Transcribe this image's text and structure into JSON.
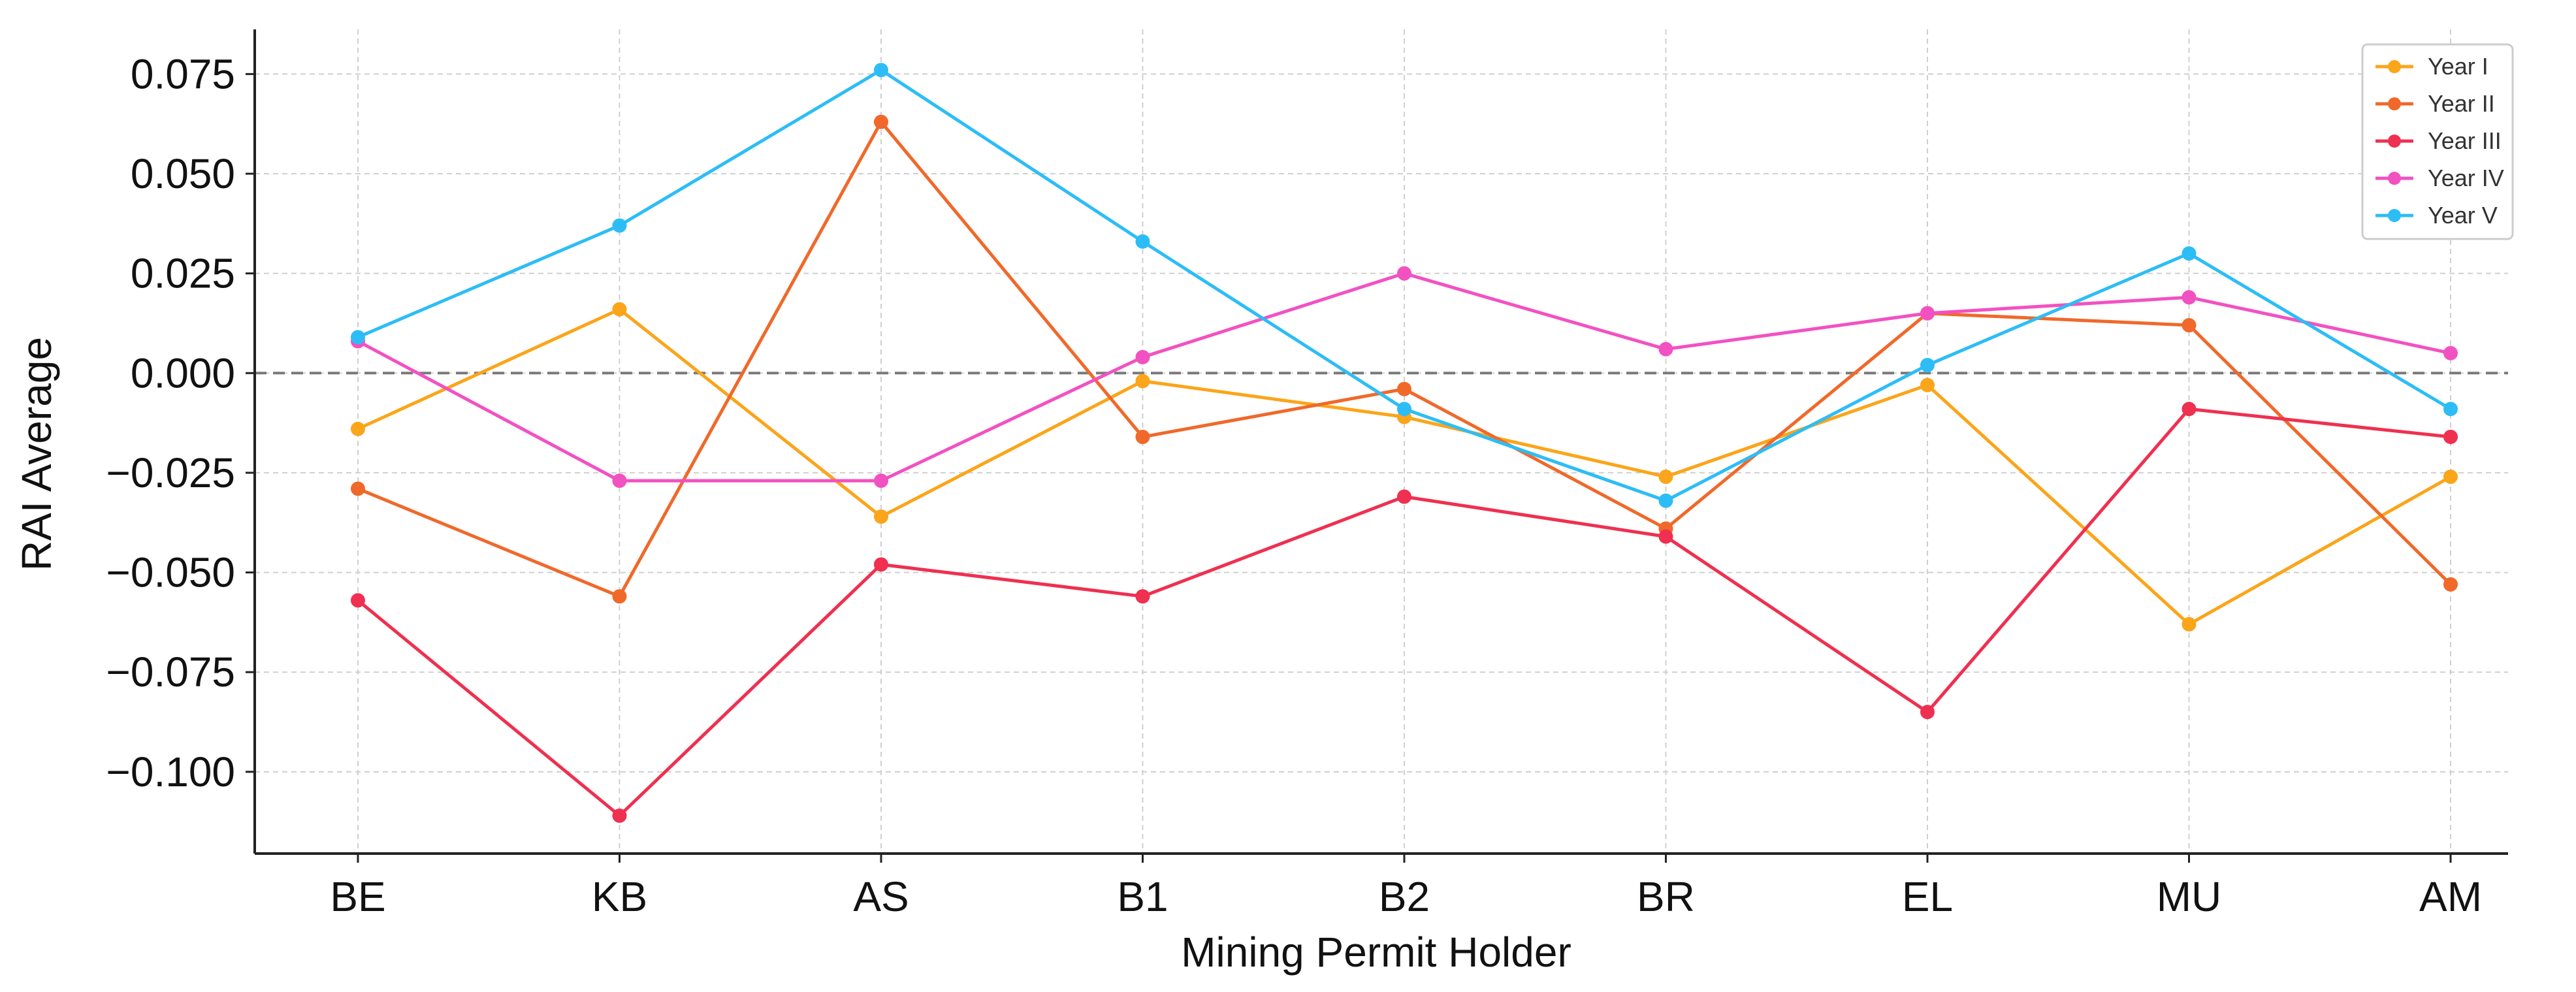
{
  "chart_data": {
    "type": "line",
    "title": "",
    "xlabel": "Mining Permit Holder",
    "ylabel": "RAI Average",
    "categories": [
      "BE",
      "KB",
      "AS",
      "B1",
      "B2",
      "BR",
      "EL",
      "MU",
      "AM"
    ],
    "ylim": [
      -0.1205,
      0.0862
    ],
    "yticks": [
      -0.1,
      -0.075,
      -0.05,
      -0.025,
      0.0,
      0.025,
      0.05,
      0.075
    ],
    "ytick_labels": [
      "−0.100",
      "−0.075",
      "−0.050",
      "−0.025",
      "0.000",
      "0.025",
      "0.050",
      "0.075"
    ],
    "grid": true,
    "reference_line": 0.0,
    "legend_position": "top-right",
    "series": [
      {
        "name": "Year I",
        "color": "#FBA51A",
        "values": [
          -0.014,
          0.016,
          -0.036,
          -0.002,
          -0.011,
          -0.026,
          -0.003,
          -0.063,
          -0.026
        ]
      },
      {
        "name": "Year II",
        "color": "#F0692A",
        "values": [
          -0.029,
          -0.056,
          0.063,
          -0.016,
          -0.004,
          -0.039,
          0.015,
          0.012,
          -0.053
        ]
      },
      {
        "name": "Year III",
        "color": "#EF3050",
        "values": [
          -0.057,
          -0.111,
          -0.048,
          -0.056,
          -0.031,
          -0.041,
          -0.085,
          -0.009,
          -0.016
        ]
      },
      {
        "name": "Year IV",
        "color": "#F251C2",
        "values": [
          0.008,
          -0.027,
          -0.027,
          0.004,
          0.025,
          0.006,
          0.015,
          0.019,
          0.005
        ]
      },
      {
        "name": "Year V",
        "color": "#2DBDF6",
        "values": [
          0.009,
          0.037,
          0.076,
          0.033,
          -0.009,
          -0.032,
          0.002,
          0.03,
          -0.009
        ]
      }
    ]
  }
}
